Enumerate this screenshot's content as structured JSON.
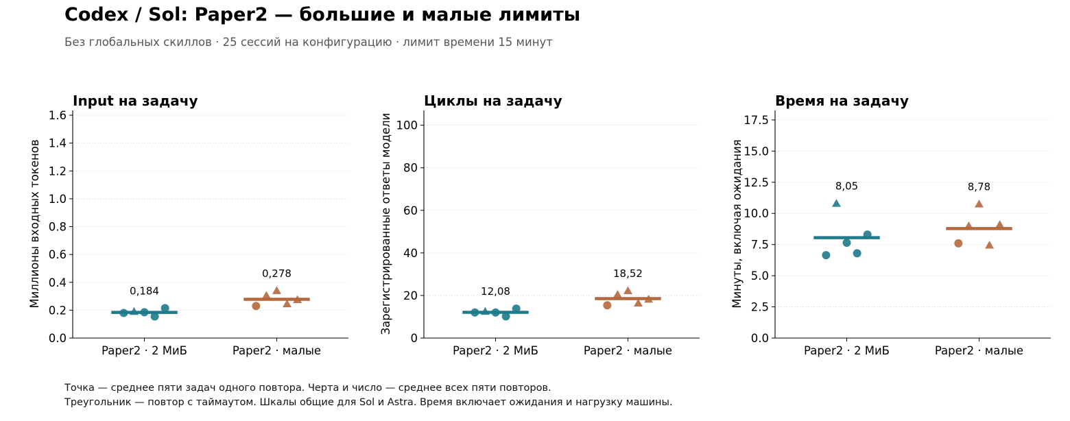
{
  "header": {
    "title": "Codex / Sol: Paper2 — большие и малые лимиты",
    "subtitle": "Без глобальных скиллов · 25 сессий на конфигурацию · лимит времени 15 минут"
  },
  "footnote": {
    "line1": "Точка — среднее пяти задач одного повтора. Черта и число — среднее всех пяти повторов.",
    "line2": "Треугольник — повтор с таймаутом. Шкалы общие для Sol и Astra. Время включает ожидания и нагрузку машины."
  },
  "colors": {
    "teal": "#1f7a8c",
    "orange": "#b5673d"
  },
  "chart_data": [
    {
      "type": "scatter",
      "title": "Input на задачу",
      "ylabel": "Миллионы входных токенов",
      "categories": [
        "Paper2 · 2 МиБ",
        "Paper2 · малые"
      ],
      "ylim": [
        0,
        1.62
      ],
      "yticks": [
        0.0,
        0.2,
        0.4,
        0.6,
        0.8,
        1.0,
        1.2,
        1.4,
        1.6
      ],
      "tick_labels": [
        "0.0",
        "0.2",
        "0.4",
        "0.6",
        "0.8",
        "1.0",
        "1.2",
        "1.4",
        "1.6"
      ],
      "grid": true,
      "series": [
        {
          "category": "Paper2 · 2 МиБ",
          "color": "#1f7a8c",
          "mean": 0.184,
          "mean_label": "0,184",
          "points": [
            {
              "dx": -0.16,
              "y": 0.18,
              "timeout": false
            },
            {
              "dx": -0.08,
              "y": 0.19,
              "timeout": true
            },
            {
              "dx": 0.0,
              "y": 0.185,
              "timeout": false
            },
            {
              "dx": 0.08,
              "y": 0.155,
              "timeout": false
            },
            {
              "dx": 0.16,
              "y": 0.215,
              "timeout": false
            }
          ]
        },
        {
          "category": "Paper2 · малые",
          "color": "#b5673d",
          "mean": 0.278,
          "mean_label": "0,278",
          "points": [
            {
              "dx": -0.16,
              "y": 0.23,
              "timeout": false
            },
            {
              "dx": -0.08,
              "y": 0.305,
              "timeout": true
            },
            {
              "dx": 0.0,
              "y": 0.34,
              "timeout": true
            },
            {
              "dx": 0.08,
              "y": 0.245,
              "timeout": true
            },
            {
              "dx": 0.16,
              "y": 0.275,
              "timeout": true
            }
          ]
        }
      ]
    },
    {
      "type": "scatter",
      "title": "Циклы на задачу",
      "ylabel": "Зарегистрированные ответы модели",
      "categories": [
        "Paper2 · 2 МиБ",
        "Paper2 · малые"
      ],
      "ylim": [
        0,
        106
      ],
      "yticks": [
        0,
        20,
        40,
        60,
        80,
        100
      ],
      "tick_labels": [
        "0",
        "20",
        "40",
        "60",
        "80",
        "100"
      ],
      "grid": true,
      "series": [
        {
          "category": "Paper2 · 2 МиБ",
          "color": "#1f7a8c",
          "mean": 12.08,
          "mean_label": "12,08",
          "points": [
            {
              "dx": -0.16,
              "y": 12.0,
              "timeout": false
            },
            {
              "dx": -0.08,
              "y": 12.5,
              "timeout": true
            },
            {
              "dx": 0.0,
              "y": 12.0,
              "timeout": false
            },
            {
              "dx": 0.08,
              "y": 10.2,
              "timeout": false
            },
            {
              "dx": 0.16,
              "y": 13.8,
              "timeout": false
            }
          ]
        },
        {
          "category": "Paper2 · малые",
          "color": "#b5673d",
          "mean": 18.52,
          "mean_label": "18,52",
          "points": [
            {
              "dx": -0.16,
              "y": 15.4,
              "timeout": false
            },
            {
              "dx": -0.08,
              "y": 20.4,
              "timeout": true
            },
            {
              "dx": 0.0,
              "y": 22.2,
              "timeout": true
            },
            {
              "dx": 0.08,
              "y": 16.4,
              "timeout": true
            },
            {
              "dx": 0.16,
              "y": 18.2,
              "timeout": true
            }
          ]
        }
      ]
    },
    {
      "type": "scatter",
      "title": "Время на задачу",
      "ylabel": "Минуты, включая ожидания",
      "categories": [
        "Paper2 · 2 МиБ",
        "Paper2 · малые"
      ],
      "ylim": [
        0,
        18.1
      ],
      "yticks": [
        0.0,
        2.5,
        5.0,
        7.5,
        10.0,
        12.5,
        15.0,
        17.5
      ],
      "tick_labels": [
        "0.0",
        "2.5",
        "5.0",
        "7.5",
        "10.0",
        "12.5",
        "15.0",
        "17.5"
      ],
      "grid": true,
      "series": [
        {
          "category": "Paper2 · 2 МиБ",
          "color": "#1f7a8c",
          "mean": 8.05,
          "mean_label": "8,05",
          "points": [
            {
              "dx": -0.16,
              "y": 6.65,
              "timeout": false
            },
            {
              "dx": -0.08,
              "y": 10.8,
              "timeout": true
            },
            {
              "dx": 0.0,
              "y": 7.65,
              "timeout": false
            },
            {
              "dx": 0.08,
              "y": 6.8,
              "timeout": false
            },
            {
              "dx": 0.16,
              "y": 8.3,
              "timeout": false
            }
          ]
        },
        {
          "category": "Paper2 · малые",
          "color": "#b5673d",
          "mean": 8.78,
          "mean_label": "8,78",
          "points": [
            {
              "dx": -0.16,
              "y": 7.6,
              "timeout": false
            },
            {
              "dx": -0.08,
              "y": 9.0,
              "timeout": true
            },
            {
              "dx": 0.0,
              "y": 10.75,
              "timeout": true
            },
            {
              "dx": 0.08,
              "y": 7.45,
              "timeout": true
            },
            {
              "dx": 0.16,
              "y": 9.1,
              "timeout": true
            }
          ]
        }
      ]
    }
  ]
}
